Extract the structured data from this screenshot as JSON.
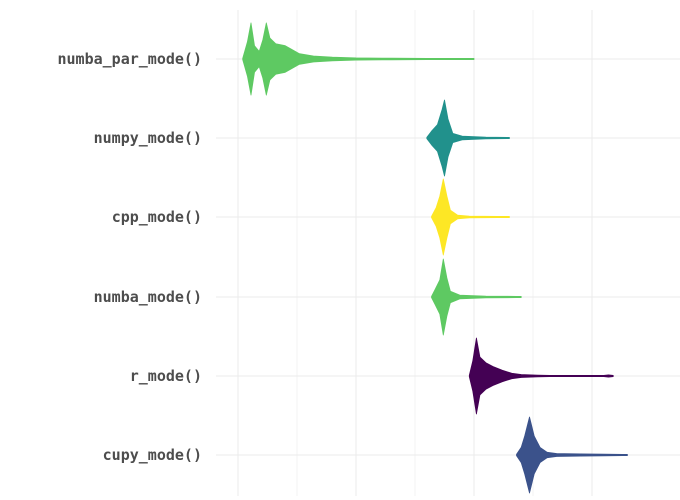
{
  "chart_data": {
    "type": "violin",
    "orientation": "horizontal",
    "title": "",
    "xlabel": "",
    "ylabel": "",
    "grid": true,
    "legend": "none",
    "x_axis_tick_labels_visible": false,
    "xlim": [
      0.0,
      1.85
    ],
    "x_major_breaks": [
      0.0,
      0.5,
      1.0,
      1.5
    ],
    "categories": [
      "numba_par_mode()",
      "numpy_mode()",
      "cpp_mode()",
      "numba_mode()",
      "r_mode()",
      "cupy_mode()"
    ],
    "series": [
      {
        "category": "numba_par_mode()",
        "color": "#5ec962",
        "profile": [
          [
            0.02,
            0.0
          ],
          [
            0.04,
            0.45
          ],
          [
            0.055,
            0.95
          ],
          [
            0.07,
            0.35
          ],
          [
            0.09,
            0.2
          ],
          [
            0.105,
            0.5
          ],
          [
            0.12,
            0.95
          ],
          [
            0.135,
            0.55
          ],
          [
            0.16,
            0.4
          ],
          [
            0.2,
            0.35
          ],
          [
            0.22,
            0.28
          ],
          [
            0.26,
            0.14
          ],
          [
            0.32,
            0.08
          ],
          [
            0.4,
            0.05
          ],
          [
            0.5,
            0.03
          ],
          [
            0.65,
            0.02
          ],
          [
            0.8,
            0.012
          ],
          [
            0.98,
            0.005
          ],
          [
            1.0,
            0.0
          ]
        ]
      },
      {
        "category": "numpy_mode()",
        "color": "#21918c",
        "profile": [
          [
            0.8,
            0.0
          ],
          [
            0.82,
            0.18
          ],
          [
            0.845,
            0.35
          ],
          [
            0.865,
            0.75
          ],
          [
            0.875,
            1.0
          ],
          [
            0.89,
            0.5
          ],
          [
            0.91,
            0.12
          ],
          [
            0.95,
            0.05
          ],
          [
            1.05,
            0.025
          ],
          [
            1.14,
            0.015
          ],
          [
            1.15,
            0.0
          ]
        ]
      },
      {
        "category": "cpp_mode()",
        "color": "#fde725",
        "profile": [
          [
            0.82,
            0.0
          ],
          [
            0.84,
            0.25
          ],
          [
            0.855,
            0.55
          ],
          [
            0.87,
            1.0
          ],
          [
            0.885,
            0.55
          ],
          [
            0.9,
            0.18
          ],
          [
            0.93,
            0.05
          ],
          [
            0.98,
            0.02
          ],
          [
            1.1,
            0.012
          ],
          [
            1.15,
            0.0
          ]
        ]
      },
      {
        "category": "numba_mode()",
        "color": "#5ec962",
        "profile": [
          [
            0.82,
            0.0
          ],
          [
            0.835,
            0.2
          ],
          [
            0.855,
            0.45
          ],
          [
            0.87,
            1.0
          ],
          [
            0.885,
            0.5
          ],
          [
            0.9,
            0.15
          ],
          [
            0.94,
            0.05
          ],
          [
            1.05,
            0.025
          ],
          [
            1.18,
            0.015
          ],
          [
            1.2,
            0.0
          ]
        ]
      },
      {
        "category": "r_mode()",
        "color": "#440154",
        "profile": [
          [
            0.98,
            0.0
          ],
          [
            0.995,
            0.4
          ],
          [
            1.01,
            1.0
          ],
          [
            1.025,
            0.5
          ],
          [
            1.05,
            0.35
          ],
          [
            1.08,
            0.25
          ],
          [
            1.12,
            0.15
          ],
          [
            1.16,
            0.07
          ],
          [
            1.2,
            0.04
          ],
          [
            1.27,
            0.025
          ],
          [
            1.32,
            0.01
          ],
          [
            1.45,
            0.0
          ],
          [
            1.55,
            0.0
          ],
          [
            1.57,
            0.03
          ],
          [
            1.59,
            0.0
          ]
        ]
      },
      {
        "category": "cupy_mode()",
        "color": "#3b528b",
        "profile": [
          [
            1.18,
            0.0
          ],
          [
            1.2,
            0.2
          ],
          [
            1.215,
            0.5
          ],
          [
            1.235,
            1.0
          ],
          [
            1.255,
            0.5
          ],
          [
            1.28,
            0.2
          ],
          [
            1.31,
            0.07
          ],
          [
            1.35,
            0.04
          ],
          [
            1.45,
            0.03
          ],
          [
            1.55,
            0.02
          ],
          [
            1.63,
            0.01
          ],
          [
            1.65,
            0.0
          ]
        ]
      }
    ]
  }
}
